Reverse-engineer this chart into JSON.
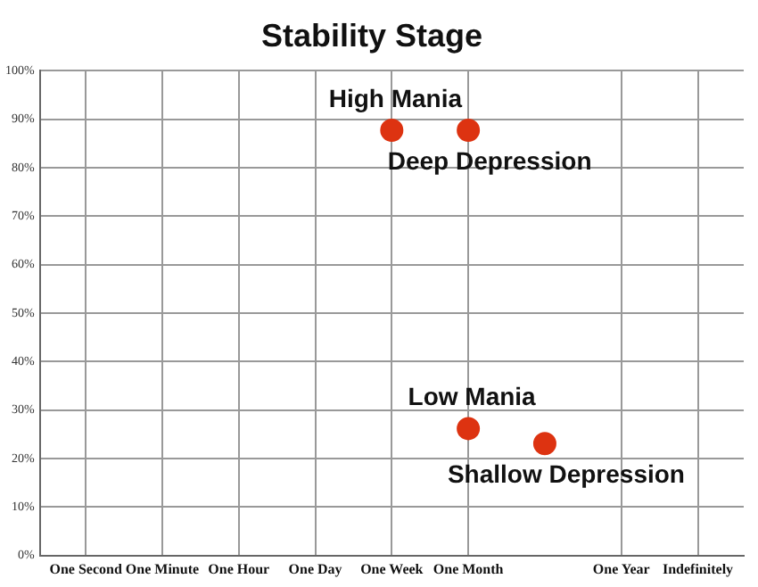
{
  "chart_data": {
    "type": "scatter",
    "title": "Stability Stage",
    "categories": [
      "One Second",
      "One Minute",
      "One Hour",
      "One Day",
      "One Week",
      "One Month",
      null,
      "One Year",
      "Indefinitely"
    ],
    "series": [
      {
        "name": "High Mania",
        "color": "#dd3311",
        "x": [
          "One Week"
        ],
        "values": [
          87.7
        ]
      },
      {
        "name": "Deep Depression",
        "color": "#dd3311",
        "x": [
          "One Month"
        ],
        "values": [
          87.7
        ]
      },
      {
        "name": "Low Mania",
        "color": "#dd3311",
        "x": [
          "One Month"
        ],
        "values": [
          26.2
        ]
      },
      {
        "name": "Shallow Depression",
        "color": "#dd3311",
        "x": [
          null
        ],
        "values": [
          23.1
        ]
      }
    ],
    "marker": "circle",
    "ylim": [
      0,
      100
    ],
    "yticks": [
      {
        "value": 0,
        "label": "0%"
      },
      {
        "value": 10,
        "label": "10%"
      },
      {
        "value": 20,
        "label": "20%"
      },
      {
        "value": 30,
        "label": "30%"
      },
      {
        "value": 40,
        "label": "40%"
      },
      {
        "value": 50,
        "label": "50%"
      },
      {
        "value": 60,
        "label": "60%"
      },
      {
        "value": 70,
        "label": "70%"
      },
      {
        "value": 80,
        "label": "80%"
      },
      {
        "value": 90,
        "label": "90%"
      },
      {
        "value": 100,
        "label": "100%"
      }
    ],
    "grid": true
  }
}
